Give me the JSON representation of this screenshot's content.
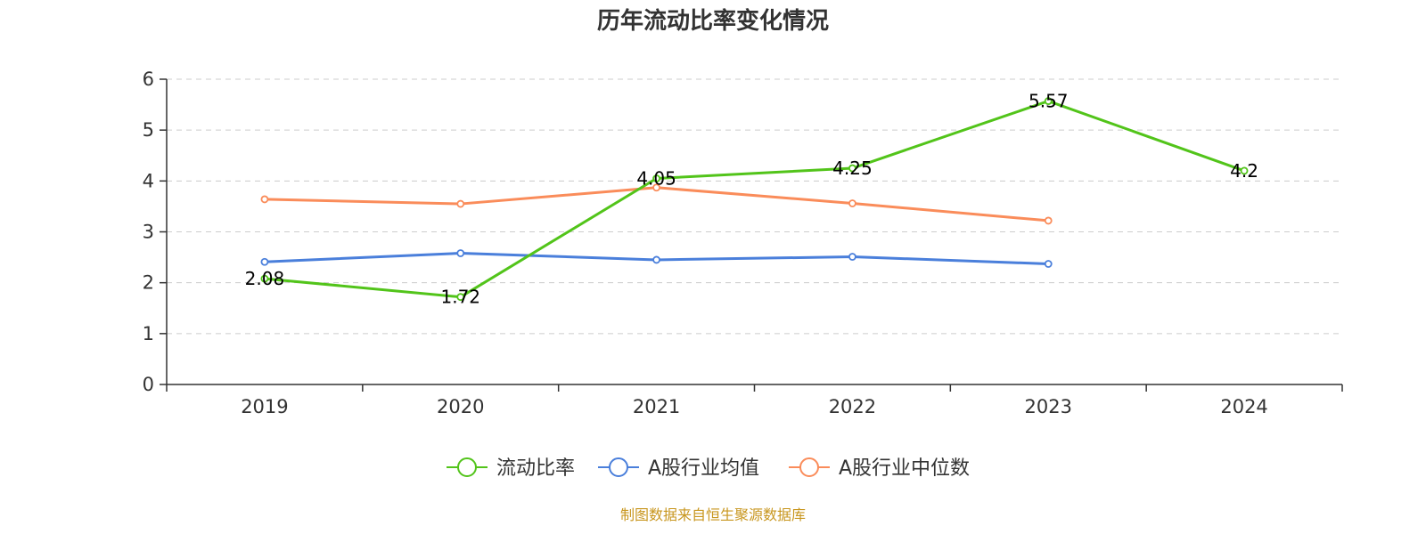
{
  "chart_data": {
    "type": "line",
    "title": "历年流动比率变化情况",
    "categories": [
      "2019",
      "2020",
      "2021",
      "2022",
      "2023",
      "2024"
    ],
    "ylim": [
      0,
      6
    ],
    "yticks": [
      0,
      1,
      2,
      3,
      4,
      5,
      6
    ],
    "grid": true,
    "legend_position": "bottom-center",
    "series": [
      {
        "name": "流动比率",
        "color": "#52c41a",
        "values": [
          2.08,
          1.72,
          4.05,
          4.25,
          5.57,
          4.2
        ],
        "labels": [
          "2.08",
          "1.72",
          "4.05",
          "4.25",
          "5.57",
          "4.2"
        ]
      },
      {
        "name": "A股行业均值",
        "color": "#4a7fdb",
        "values": [
          2.41,
          2.58,
          2.45,
          2.51,
          2.37,
          null
        ]
      },
      {
        "name": "A股行业中位数",
        "color": "#fa8c5a",
        "values": [
          3.64,
          3.55,
          3.87,
          3.56,
          3.22,
          null
        ]
      }
    ],
    "source": "制图数据来自恒生聚源数据库"
  }
}
